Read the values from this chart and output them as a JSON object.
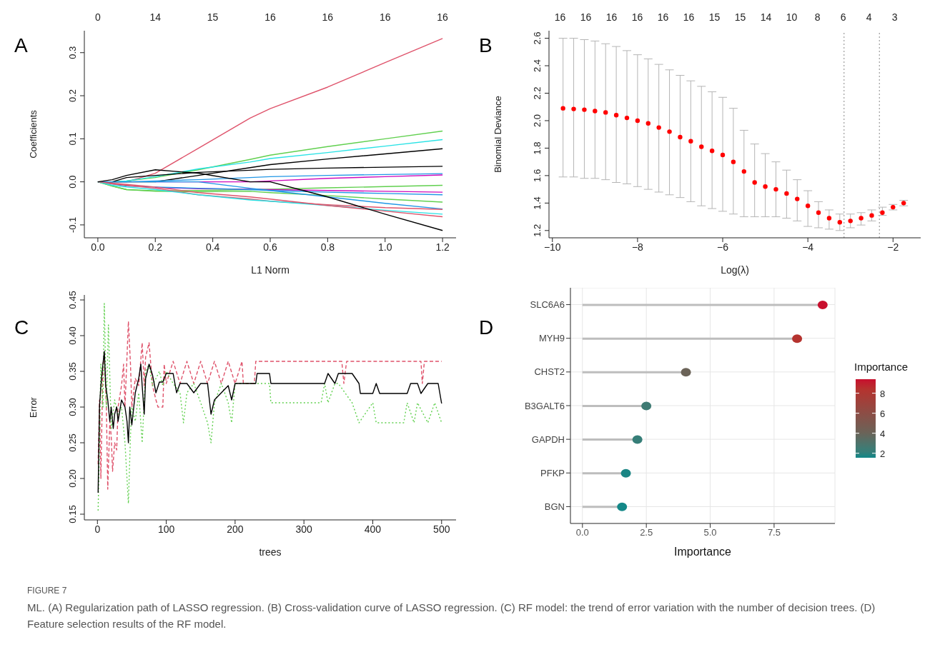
{
  "chart_data": [
    {
      "type": "line",
      "title": "A",
      "xlabel": "L1 Norm",
      "ylabel": "Coefficients",
      "xlim": [
        -0.047,
        1.247
      ],
      "ylim": [
        -0.13,
        0.351
      ],
      "xticks": [
        {
          "value": 0,
          "label": "0.0"
        },
        {
          "value": 0.2,
          "label": "0.2"
        },
        {
          "value": 0.4,
          "label": "0.4"
        },
        {
          "value": 0.6,
          "label": "0.6"
        },
        {
          "value": 0.8,
          "label": "0.8"
        },
        {
          "value": 1,
          "label": "1.0"
        },
        {
          "value": 1.2,
          "label": "1.2"
        }
      ],
      "yticks": [
        {
          "value": -0.1,
          "label": "-0.1"
        },
        {
          "value": 0,
          "label": "0.0"
        },
        {
          "value": 0.1,
          "label": "0.1"
        },
        {
          "value": 0.2,
          "label": "0.2"
        },
        {
          "value": 0.3,
          "label": "0.3"
        }
      ],
      "annotations": [
        "0",
        "14",
        "15",
        "16",
        "16",
        "16",
        "16"
      ],
      "grid": false,
      "marker": "none",
      "line_style": "solid",
      "x": [
        0,
        0.05,
        0.1,
        0.2,
        0.35,
        0.53,
        0.6,
        0.8,
        1.0,
        1.2
      ],
      "series": [
        {
          "color": "#df536b",
          "values": [
            0,
            0,
            0,
            0.02,
            0.078,
            0.148,
            0.17,
            0.22,
            0.277,
            0.333
          ]
        },
        {
          "color": "#61d04f",
          "values": [
            0,
            0,
            0.002,
            0.01,
            0.028,
            0.052,
            0.062,
            0.082,
            0.1,
            0.118
          ]
        },
        {
          "color": "#28e2e5",
          "values": [
            0,
            0,
            0.002,
            0.012,
            0.03,
            0.046,
            0.054,
            0.068,
            0.083,
            0.098
          ]
        },
        {
          "color": "#000000",
          "values": [
            0,
            0,
            0,
            0,
            0.015,
            0.033,
            0.04,
            0.053,
            0.065,
            0.077
          ]
        },
        {
          "color": "#000000",
          "values": [
            0,
            0,
            0.01,
            0.015,
            0.022,
            0.027,
            0.029,
            0.032,
            0.034,
            0.036
          ]
        },
        {
          "color": "#2297e6",
          "values": [
            0,
            0,
            0,
            0.002,
            0.005,
            0.01,
            0.012,
            0.015,
            0.017,
            0.019
          ]
        },
        {
          "color": "#cd0bbc",
          "values": [
            null,
            null,
            null,
            0,
            0,
            0,
            0.002,
            0.008,
            0.012,
            0.016
          ]
        },
        {
          "color": "#61d04f",
          "values": [
            0,
            -0.01,
            -0.018,
            -0.021,
            -0.02,
            -0.018,
            -0.017,
            -0.014,
            -0.011,
            -0.008
          ]
        },
        {
          "color": "#cd0bbc",
          "values": [
            null,
            null,
            null,
            -0.013,
            -0.016,
            -0.017,
            -0.018,
            -0.02,
            -0.022,
            -0.024
          ]
        },
        {
          "color": "#2297e6",
          "values": [
            0,
            -0.005,
            -0.01,
            -0.012,
            -0.015,
            -0.018,
            -0.02,
            -0.024,
            -0.027,
            -0.03
          ]
        },
        {
          "color": "#61d04f",
          "values": [
            0,
            -0.01,
            -0.018,
            -0.022,
            -0.023,
            -0.022,
            -0.025,
            -0.032,
            -0.04,
            -0.047
          ]
        },
        {
          "color": "#2297e6",
          "values": [
            0,
            0,
            0,
            0,
            0,
            -0.015,
            -0.02,
            -0.035,
            -0.05,
            -0.063
          ]
        },
        {
          "color": "#df536b",
          "values": [
            0,
            -0.005,
            -0.008,
            -0.015,
            -0.03,
            -0.04,
            -0.045,
            -0.053,
            -0.06,
            -0.064
          ]
        },
        {
          "color": "#28e2e5",
          "values": [
            0,
            -0.008,
            -0.012,
            -0.018,
            -0.03,
            -0.042,
            -0.045,
            -0.055,
            -0.066,
            -0.075
          ]
        },
        {
          "color": "#df536b",
          "values": [
            0,
            -0.003,
            -0.006,
            -0.012,
            -0.025,
            -0.035,
            -0.04,
            -0.055,
            -0.068,
            -0.081
          ]
        },
        {
          "color": "#000000",
          "values": [
            0,
            0.005,
            0.015,
            0.028,
            0.02,
            0,
            0,
            -0.035,
            -0.075,
            -0.113
          ]
        }
      ]
    },
    {
      "type": "scatter",
      "title": "B",
      "xlabel": "Log(λ)",
      "ylabel": "Binomial Deviance",
      "xlim": [
        -10.08,
        -1.35
      ],
      "ylim": [
        1.147,
        2.655
      ],
      "xticks": [
        {
          "value": -10,
          "label": "−10"
        },
        {
          "value": -8,
          "label": "−8"
        },
        {
          "value": -6,
          "label": "−6"
        },
        {
          "value": -4,
          "label": "−4"
        },
        {
          "value": -2,
          "label": "−2"
        }
      ],
      "yticks": [
        {
          "value": 1.2,
          "label": "1.2"
        },
        {
          "value": 1.4,
          "label": "1.4"
        },
        {
          "value": 1.6,
          "label": "1.6"
        },
        {
          "value": 1.8,
          "label": "1.8"
        },
        {
          "value": 2,
          "label": "2.0"
        },
        {
          "value": 2.2,
          "label": "2.2"
        },
        {
          "value": 2.4,
          "label": "2.4"
        },
        {
          "value": 2.6,
          "label": "2.6"
        }
      ],
      "annotations": [
        "16",
        "16",
        "16",
        "16",
        "16",
        "16",
        "15",
        "15",
        "14",
        "10",
        "8",
        "6",
        "4",
        "3"
      ],
      "grid": false,
      "marker": "circle",
      "ref_lines": [
        {
          "axis": "x",
          "value": -3.15,
          "line_style": "dotted",
          "color": "#888888"
        },
        {
          "axis": "x",
          "value": -2.32,
          "line_style": "dotted",
          "color": "#888888"
        }
      ],
      "x": [
        -9.75,
        -9.5,
        -9.25,
        -9,
        -8.75,
        -8.5,
        -8.25,
        -8,
        -7.75,
        -7.5,
        -7.25,
        -7,
        -6.75,
        -6.5,
        -6.25,
        -6,
        -5.75,
        -5.5,
        -5.25,
        -5,
        -4.75,
        -4.5,
        -4.25,
        -4,
        -3.75,
        -3.5,
        -3.25,
        -3,
        -2.75,
        -2.5,
        -2.25,
        -2,
        -1.75
      ],
      "series": [
        {
          "color": "#ff0000",
          "values": [
            2.09,
            2.085,
            2.08,
            2.07,
            2.06,
            2.04,
            2.02,
            2.0,
            1.98,
            1.95,
            1.92,
            1.88,
            1.85,
            1.81,
            1.78,
            1.75,
            1.7,
            1.63,
            1.55,
            1.52,
            1.5,
            1.47,
            1.43,
            1.38,
            1.33,
            1.29,
            1.26,
            1.27,
            1.29,
            1.31,
            1.33,
            1.37,
            1.4
          ],
          "errors": [
            [
              1.59,
              2.6
            ],
            [
              1.59,
              2.6
            ],
            [
              1.58,
              2.59
            ],
            [
              1.58,
              2.58
            ],
            [
              1.57,
              2.56
            ],
            [
              1.55,
              2.54
            ],
            [
              1.54,
              2.51
            ],
            [
              1.52,
              2.48
            ],
            [
              1.5,
              2.45
            ],
            [
              1.48,
              2.41
            ],
            [
              1.46,
              2.37
            ],
            [
              1.44,
              2.33
            ],
            [
              1.41,
              2.29
            ],
            [
              1.38,
              2.25
            ],
            [
              1.36,
              2.21
            ],
            [
              1.34,
              2.17
            ],
            [
              1.32,
              2.09
            ],
            [
              1.3,
              1.93
            ],
            [
              1.3,
              1.83
            ],
            [
              1.3,
              1.76
            ],
            [
              1.3,
              1.7
            ],
            [
              1.29,
              1.64
            ],
            [
              1.27,
              1.57
            ],
            [
              1.23,
              1.49
            ],
            [
              1.22,
              1.41
            ],
            [
              1.21,
              1.35
            ],
            [
              1.2,
              1.32
            ],
            [
              1.22,
              1.32
            ],
            [
              1.24,
              1.33
            ],
            [
              1.27,
              1.35
            ],
            [
              1.31,
              1.37
            ],
            [
              1.35,
              1.39
            ],
            [
              1.38,
              1.42
            ]
          ]
        }
      ]
    },
    {
      "type": "line",
      "title": "C",
      "xlabel": "trees",
      "ylabel": "Error",
      "xlim": [
        -19,
        521
      ],
      "ylim": [
        0.142,
        0.457
      ],
      "xticks": [
        0,
        100,
        200,
        300,
        400,
        500
      ],
      "yticks": [
        {
          "value": 0.15,
          "label": "0.15"
        },
        {
          "value": 0.2,
          "label": "0.20"
        },
        {
          "value": 0.25,
          "label": "0.25"
        },
        {
          "value": 0.3,
          "label": "0.30"
        },
        {
          "value": 0.35,
          "label": "0.35"
        },
        {
          "value": 0.4,
          "label": "0.40"
        },
        {
          "value": 0.45,
          "label": "0.45"
        }
      ],
      "grid": false,
      "marker": "none",
      "series": [
        {
          "color": "#df536b",
          "line_style": "dashed",
          "x": [
            1,
            3,
            5,
            8,
            10,
            13,
            15,
            18,
            20,
            22,
            25,
            28,
            30,
            35,
            38,
            40,
            45,
            48,
            50,
            55,
            60,
            65,
            68,
            70,
            75,
            80,
            85,
            88,
            95,
            97,
            100,
            110,
            120,
            130,
            140,
            150,
            160,
            170,
            180,
            190,
            200,
            210,
            212,
            228,
            230,
            355,
            358,
            362,
            470,
            472,
            475,
            500
          ],
          "values": [
            0.22,
            0.31,
            0.2,
            0.36,
            0.37,
            0.3,
            0.185,
            0.28,
            0.26,
            0.21,
            0.25,
            0.24,
            0.3,
            0.33,
            0.36,
            0.3,
            0.42,
            0.36,
            0.3,
            0.34,
            0.33,
            0.39,
            0.33,
            0.37,
            0.39,
            0.33,
            0.31,
            0.3,
            0.3,
            0.36,
            0.333,
            0.364,
            0.333,
            0.364,
            0.333,
            0.364,
            0.333,
            0.364,
            0.333,
            0.364,
            0.333,
            0.364,
            0.333,
            0.333,
            0.364,
            0.364,
            0.333,
            0.364,
            0.364,
            0.333,
            0.364,
            0.364
          ]
        },
        {
          "color": "#61d04f",
          "line_style": "dotted",
          "x": [
            1,
            3,
            5,
            8,
            10,
            13,
            16,
            20,
            25,
            30,
            35,
            40,
            45,
            48,
            50,
            55,
            60,
            65,
            70,
            75,
            80,
            90,
            95,
            100,
            110,
            120,
            125,
            130,
            140,
            150,
            160,
            165,
            170,
            180,
            190,
            195,
            200,
            250,
            252,
            325,
            330,
            335,
            345,
            350,
            370,
            380,
            400,
            405,
            445,
            450,
            460,
            465,
            480,
            490,
            500
          ],
          "values": [
            0.155,
            0.25,
            0.36,
            0.3,
            0.445,
            0.3,
            0.415,
            0.27,
            0.31,
            0.29,
            0.3,
            0.25,
            0.165,
            0.26,
            0.3,
            0.28,
            0.32,
            0.25,
            0.35,
            0.36,
            0.33,
            0.35,
            0.33,
            0.35,
            0.333,
            0.32,
            0.278,
            0.32,
            0.333,
            0.306,
            0.278,
            0.25,
            0.306,
            0.333,
            0.306,
            0.278,
            0.333,
            0.333,
            0.306,
            0.306,
            0.333,
            0.306,
            0.333,
            0.333,
            0.306,
            0.278,
            0.306,
            0.278,
            0.278,
            0.306,
            0.278,
            0.306,
            0.278,
            0.306,
            0.278
          ]
        },
        {
          "color": "#000000",
          "line_style": "solid",
          "x": [
            1,
            3,
            5,
            8,
            10,
            12,
            15,
            18,
            20,
            23,
            25,
            28,
            30,
            35,
            40,
            43,
            45,
            47,
            50,
            55,
            60,
            63,
            65,
            68,
            70,
            75,
            80,
            85,
            90,
            95,
            100,
            110,
            115,
            120,
            130,
            140,
            150,
            160,
            165,
            170,
            180,
            190,
            195,
            200,
            230,
            232,
            250,
            252,
            330,
            335,
            345,
            350,
            370,
            380,
            382,
            400,
            405,
            410,
            450,
            455,
            465,
            470,
            480,
            495,
            500
          ],
          "values": [
            0.18,
            0.3,
            0.33,
            0.36,
            0.378,
            0.33,
            0.31,
            0.28,
            0.3,
            0.27,
            0.29,
            0.3,
            0.28,
            0.31,
            0.3,
            0.28,
            0.25,
            0.3,
            0.275,
            0.32,
            0.34,
            0.36,
            0.33,
            0.29,
            0.34,
            0.36,
            0.345,
            0.32,
            0.335,
            0.335,
            0.347,
            0.347,
            0.32,
            0.333,
            0.333,
            0.32,
            0.333,
            0.333,
            0.29,
            0.31,
            0.32,
            0.33,
            0.31,
            0.333,
            0.333,
            0.347,
            0.347,
            0.333,
            0.333,
            0.347,
            0.333,
            0.347,
            0.347,
            0.333,
            0.319,
            0.319,
            0.333,
            0.319,
            0.319,
            0.333,
            0.333,
            0.319,
            0.333,
            0.333,
            0.305
          ]
        }
      ]
    },
    {
      "type": "lollipop",
      "title": "D",
      "orientation": "horizontal",
      "xlabel": "Importance",
      "clabel": "Importance",
      "xlim": [
        -0.47,
        9.88
      ],
      "xticks": [
        {
          "value": 0,
          "label": "0.0"
        },
        {
          "value": 2.5,
          "label": "2.5"
        },
        {
          "value": 5,
          "label": "5.0"
        },
        {
          "value": 7.5,
          "label": "7.5"
        }
      ],
      "grid": true,
      "categories": [
        "SLC6A6",
        "MYH9",
        "CHST2",
        "B3GALT6",
        "GAPDH",
        "PFKP",
        "BGN"
      ],
      "values": [
        9.4,
        8.4,
        4.05,
        2.5,
        2.15,
        1.7,
        1.55
      ],
      "colors": [
        "#c8102e",
        "#b5332f",
        "#6b6358",
        "#3f7b74",
        "#367e78",
        "#1a8584",
        "#148888"
      ],
      "clim": [
        1.55,
        9.4
      ],
      "cticks": [
        2,
        4,
        6,
        8
      ],
      "annotations": [
        "FIGURE 7",
        "ML. (A) Regularization path of LASSO regression. (B) Cross-validation curve of LASSO regression. (C) RF model: the trend of error variation with the number of decision trees. (D) Feature selection results of the RF model."
      ]
    }
  ]
}
